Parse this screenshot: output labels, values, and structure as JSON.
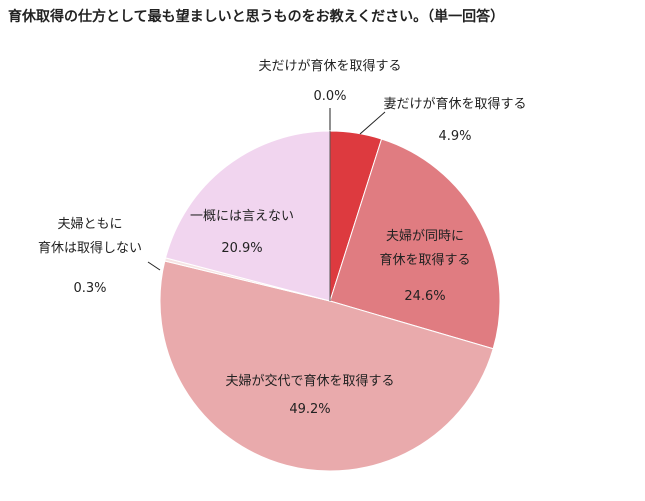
{
  "chart_data": {
    "type": "pie",
    "title": "育休取得の仕方として最も望ましいと思うものをお教えください。（単一回答）",
    "slices": [
      {
        "label": [
          "夫だけが育休を取得する"
        ],
        "value": 0.0,
        "value_label": "0.0%",
        "color": "#c0282e",
        "label_pos": "outside-top"
      },
      {
        "label": [
          "妻だけが育休を取得する"
        ],
        "value": 4.9,
        "value_label": "4.9%",
        "color": "#dd3a3f",
        "label_pos": "outside-top-right"
      },
      {
        "label": [
          "夫婦が同時に",
          "育休を取得する"
        ],
        "value": 24.6,
        "value_label": "24.6%",
        "color": "#e07c81",
        "label_pos": "inside"
      },
      {
        "label": [
          "夫婦が交代で育休を取得する"
        ],
        "value": 49.2,
        "value_label": "49.2%",
        "color": "#e9aaac",
        "label_pos": "inside"
      },
      {
        "label": [
          "夫婦ともに",
          "育休は取得しない"
        ],
        "value": 0.3,
        "value_label": "0.3%",
        "color": "#f6e4e4",
        "label_pos": "outside-left"
      },
      {
        "label": [
          "一概には言えない"
        ],
        "value": 20.9,
        "value_label": "20.9%",
        "color": "#f1d5ef",
        "label_pos": "inside"
      }
    ],
    "start_angle": "top",
    "direction": "clockwise"
  }
}
